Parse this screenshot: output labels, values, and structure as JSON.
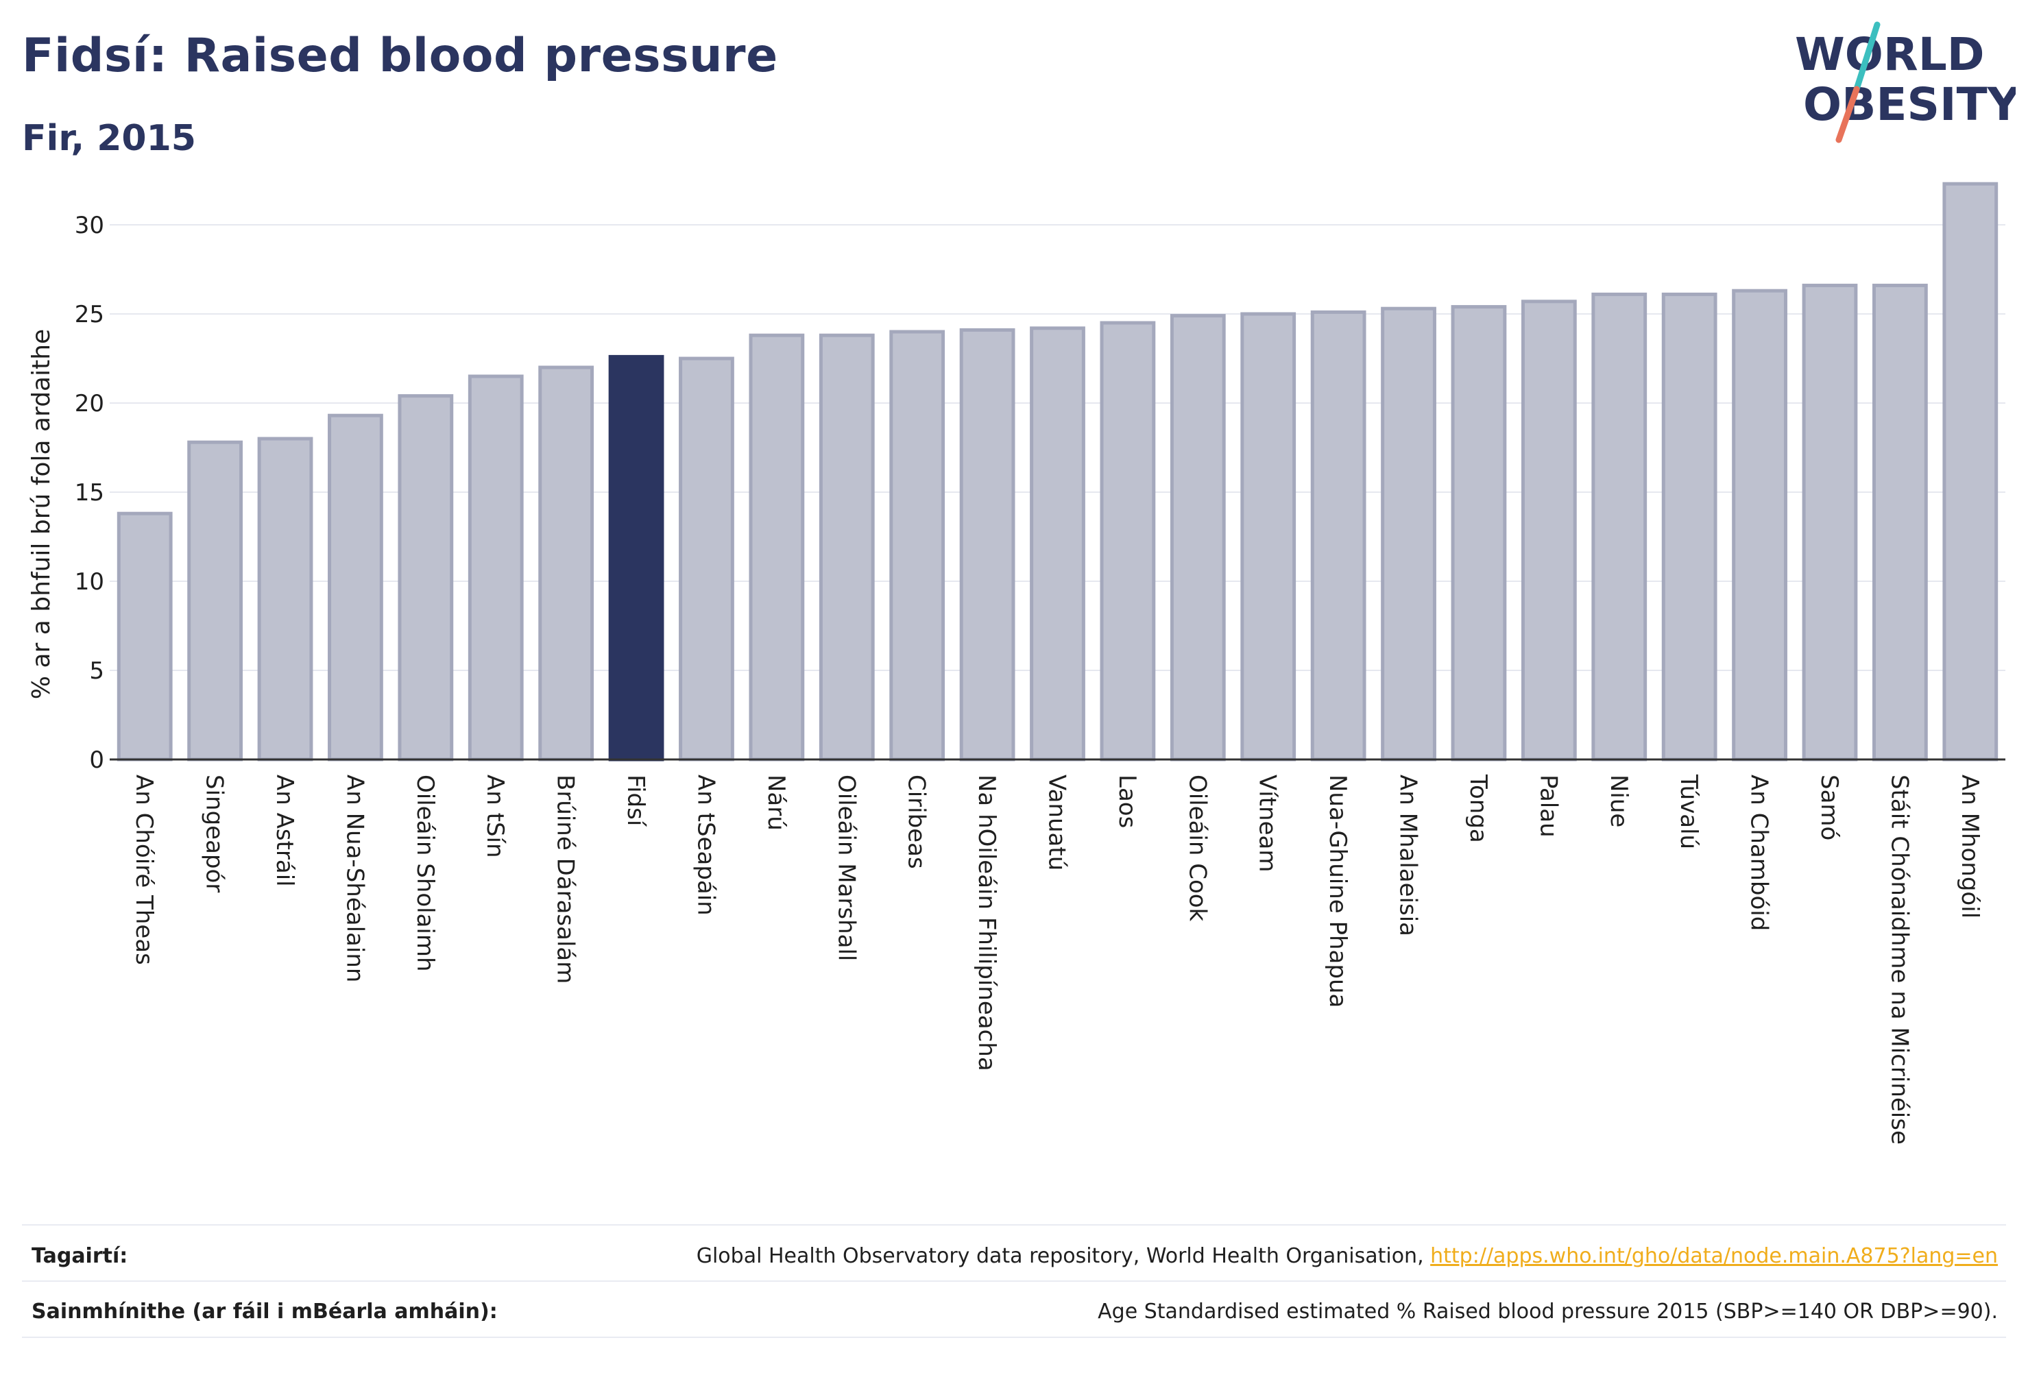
{
  "header": {
    "title": "Fidsí: Raised blood pressure",
    "subtitle": "Fir, 2015"
  },
  "logo": {
    "line1": "WORLD",
    "line2": "OBESITY",
    "text_color": "#2b3560",
    "slash_color_top": "#3cbfbf",
    "slash_color_bottom": "#e8735a"
  },
  "colors": {
    "bar_fill": "#bec1cf",
    "bar_stroke": "#a4a8bc",
    "highlight_fill": "#2b3560",
    "grid": "#e6e8ef",
    "axis": "#333333"
  },
  "chart_data": {
    "type": "bar",
    "title": "Fidsí: Raised blood pressure",
    "subtitle": "Fir, 2015",
    "ylabel": "% ar a bhfuil brú fola ardaithe",
    "xlabel": "",
    "ylim": [
      0,
      33
    ],
    "yticks": [
      0,
      5,
      10,
      15,
      20,
      25,
      30
    ],
    "grid": true,
    "highlight": "Fidsí",
    "categories": [
      "An Chóiré Theas",
      "Singeapór",
      "An Astráil",
      "An Nua-Shéalainn",
      "Oileáin Sholaimh",
      "An tSín",
      "Brúiné Dárasalám",
      "Fidsí",
      "An tSeapáin",
      "Nárú",
      "Oileáin Marshall",
      "Ciribeas",
      "Na hOileáin Fhilipíneacha",
      "Vanuatú",
      "Laos",
      "Oileáin Cook",
      "Vítneam",
      "Nua-Ghuine Phapua",
      "An Mhalaeisia",
      "Tonga",
      "Palau",
      "Niue",
      "Túvalú",
      "An Chambóid",
      "Samó",
      "Stáit Chónaidhme na Micrinéise",
      "An Mhongóil"
    ],
    "values": [
      13.8,
      17.8,
      18.0,
      19.3,
      20.4,
      21.5,
      22.0,
      22.6,
      22.5,
      23.8,
      23.8,
      24.0,
      24.1,
      24.2,
      24.5,
      24.9,
      25.0,
      25.1,
      25.3,
      25.4,
      25.7,
      26.1,
      26.1,
      26.3,
      26.6,
      26.6,
      32.3
    ]
  },
  "footer": {
    "references_label": "Tagairtí:",
    "references_text": "Global Health Observatory data repository, World Health Organisation, ",
    "references_link": "http://apps.who.int/gho/data/node.main.A875?lang=en",
    "definitions_label": "Sainmhínithe (ar fáil i mBéarla amháin):",
    "definitions_text": "Age Standardised estimated % Raised blood pressure 2015 (SBP>=140 OR DBP>=90)."
  }
}
